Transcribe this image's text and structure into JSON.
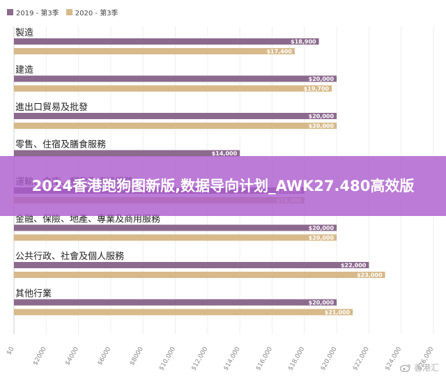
{
  "legend": [
    {
      "label": "2019 - 第3季",
      "color": "#8c6a8e"
    },
    {
      "label": "2020 - 第3季",
      "color": "#d7b98a"
    }
  ],
  "overlay_title": "2024香港跑狗图新版,数据导向计划_AWK27.480高效版",
  "watermark": {
    "icon": "weibo-icon",
    "text": "香港汇"
  },
  "chart_data": {
    "type": "bar",
    "orientation": "horizontal",
    "categories": [
      "製造",
      "建造",
      "進出口貿易及批發",
      "零售、住宿及膳食服務",
      "運輸、倉庫、郵政及速遞服務",
      "金融、保險、地產、專業及商用服務",
      "公共行政、社會及個人服務",
      "其他行業"
    ],
    "series": [
      {
        "name": "2019 - 第3季",
        "color": "#8c6a8e",
        "values": [
          18900,
          20000,
          20000,
          14000,
          18000,
          20000,
          22000,
          20000
        ],
        "value_labels": [
          "$18,900",
          "$20,000",
          "$20,000",
          "$14,000",
          "$18,000",
          "$20,000",
          "$22,000",
          "$20,000"
        ]
      },
      {
        "name": "2020 - 第3季",
        "color": "#d7b98a",
        "values": [
          17400,
          19700,
          20000,
          null,
          18000,
          20000,
          23000,
          21000
        ],
        "value_labels": [
          "$17,400",
          "$19,700",
          "$20,000",
          "",
          "$18,000",
          "$20,000",
          "$23,000",
          "$21,000"
        ]
      }
    ],
    "x_ticks": [
      "$0",
      "$2000",
      "$4000",
      "$6000",
      "$8000",
      "$10,000",
      "$12,000",
      "$14,000",
      "$16,000",
      "$18,000",
      "$20,000",
      "$22,000",
      "$24,000",
      "$26,000"
    ],
    "xlim": [
      0,
      26000
    ],
    "grid": true,
    "legend_position": "top-left"
  }
}
